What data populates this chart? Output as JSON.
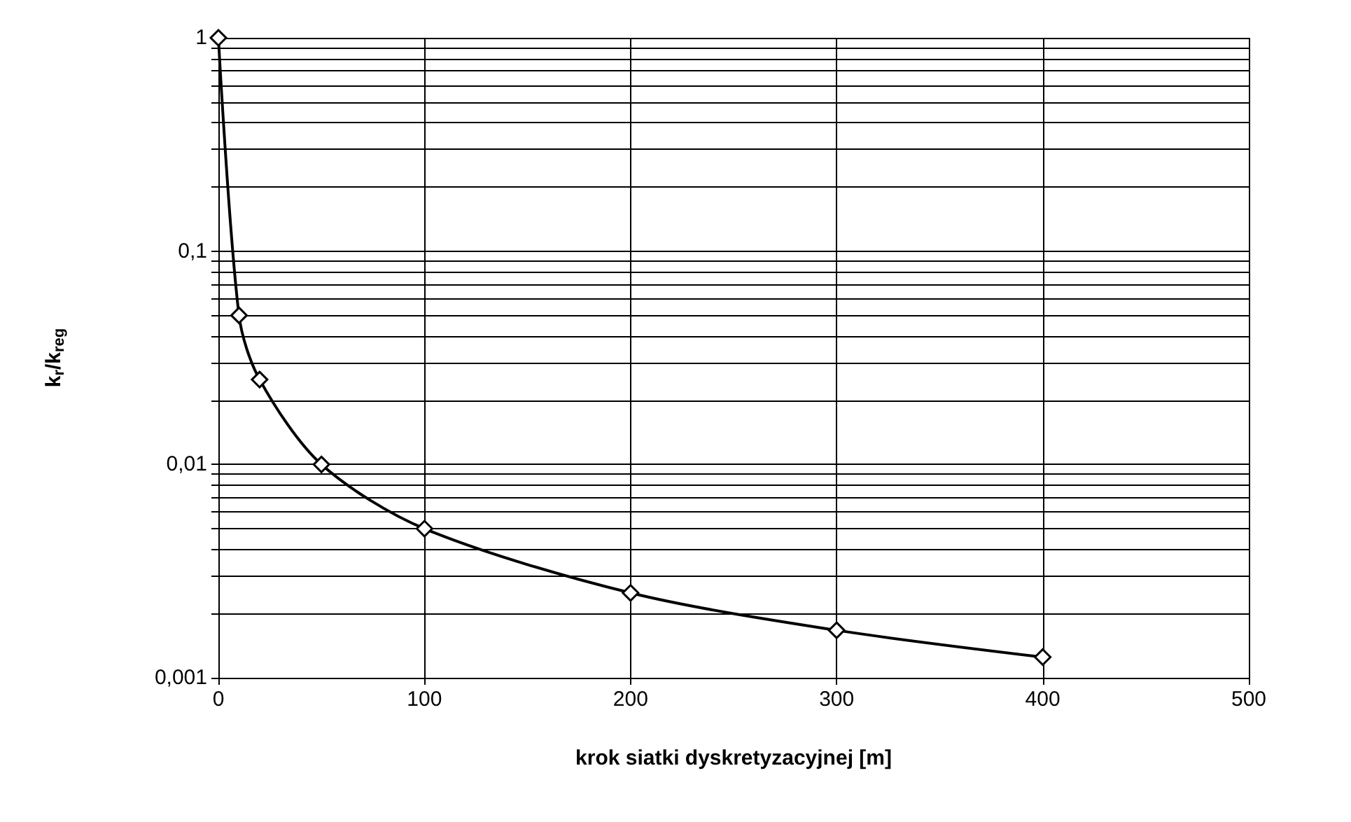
{
  "chart_data": {
    "type": "line",
    "xlabel": "krok siatki dyskretyzacyjnej [m]",
    "ylabel": "k$_{r}$/k$_{reg}$",
    "x": [
      0,
      10,
      20,
      50,
      100,
      200,
      300,
      400
    ],
    "series": [
      {
        "color": "#000000",
        "values": [
          1,
          0.05,
          0.025,
          0.01,
          0.005,
          0.0025,
          0.00167,
          0.00125
        ]
      }
    ],
    "xlim": [
      0,
      500
    ],
    "xticks": [
      0,
      100,
      200,
      300,
      400,
      500
    ],
    "ylim": [
      0.001,
      1
    ],
    "log": "y",
    "yticks": [
      {
        "value": 0.001,
        "label": "0,001"
      },
      {
        "value": 0.002,
        "label": null
      },
      {
        "value": 0.003,
        "label": null
      },
      {
        "value": 0.004,
        "label": null
      },
      {
        "value": 0.005,
        "label": null
      },
      {
        "value": 0.006,
        "label": null
      },
      {
        "value": 0.007,
        "label": null
      },
      {
        "value": 0.008,
        "label": null
      },
      {
        "value": 0.009,
        "label": null
      },
      {
        "value": 0.01,
        "label": "0,01"
      },
      {
        "value": 0.02,
        "label": null
      },
      {
        "value": 0.03,
        "label": null
      },
      {
        "value": 0.04,
        "label": null
      },
      {
        "value": 0.05,
        "label": null
      },
      {
        "value": 0.06,
        "label": null
      },
      {
        "value": 0.07,
        "label": null
      },
      {
        "value": 0.08,
        "label": null
      },
      {
        "value": 0.09,
        "label": null
      },
      {
        "value": 0.1,
        "label": "0,1"
      },
      {
        "value": 0.2,
        "label": null
      },
      {
        "value": 0.3,
        "label": null
      },
      {
        "value": 0.4,
        "label": null
      },
      {
        "value": 0.5,
        "label": null
      },
      {
        "value": 0.6,
        "label": null
      },
      {
        "value": 0.7,
        "label": null
      },
      {
        "value": 0.8,
        "label": null
      },
      {
        "value": 0.9,
        "label": null
      },
      {
        "value": 1,
        "label": "1"
      }
    ],
    "grid": true,
    "marker": "diamond",
    "line_style": "solid"
  }
}
